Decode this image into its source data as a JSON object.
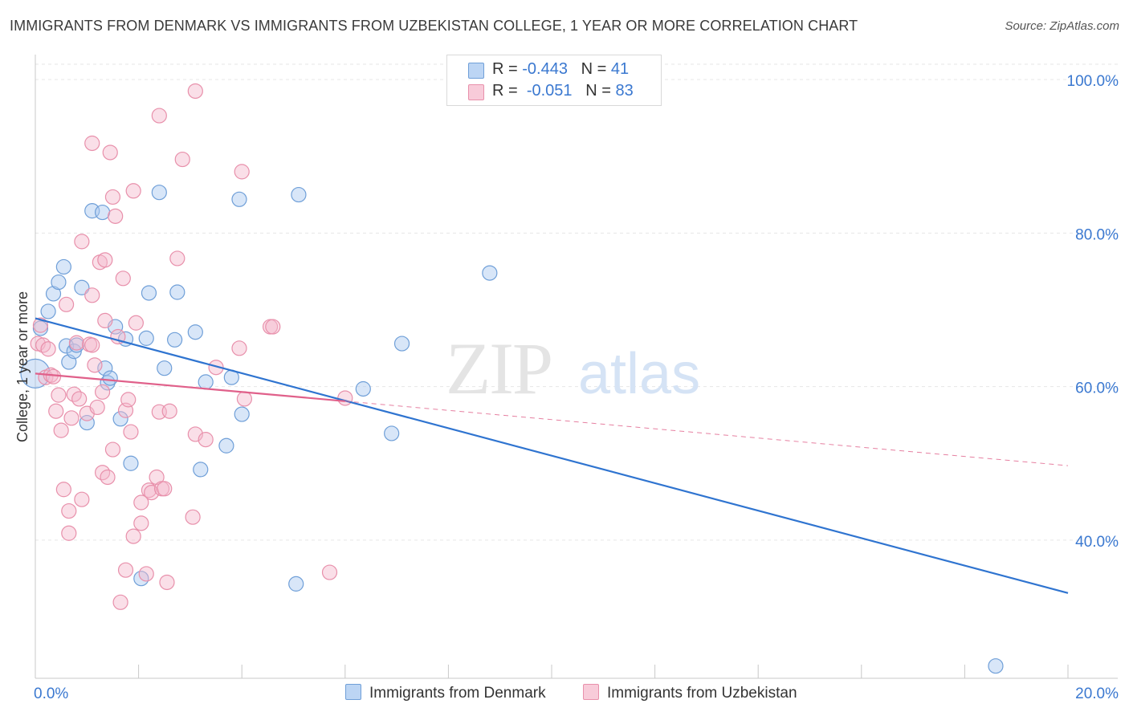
{
  "title": "IMMIGRANTS FROM DENMARK VS IMMIGRANTS FROM UZBEKISTAN COLLEGE, 1 YEAR OR MORE CORRELATION CHART",
  "source": "Source: ZipAtlas.com",
  "watermark": {
    "zip": "ZIP",
    "atlas": "atlas"
  },
  "legend": {
    "r_label": "R =",
    "n_label": "N =",
    "series": [
      {
        "r": "-0.443",
        "n": "41"
      },
      {
        "r": "-0.051",
        "n": "83"
      }
    ]
  },
  "colors": {
    "denmark_fill": "#a9c8f0",
    "denmark_stroke": "#6f9fd8",
    "denmark_line": "#2f74d0",
    "uzbekistan_fill": "#f5b9cc",
    "uzbekistan_stroke": "#e890ab",
    "uzbekistan_line": "#e0608a",
    "axis_label": "#3a78d0",
    "grid": "#e6e6e6"
  },
  "chart_data": {
    "type": "scatter",
    "title": "IMMIGRANTS FROM DENMARK VS IMMIGRANTS FROM UZBEKISTAN COLLEGE, 1 YEAR OR MORE CORRELATION CHART",
    "xlabel": "",
    "ylabel": "College, 1 year or more",
    "xlim": [
      0,
      20
    ],
    "ylim": [
      22,
      102
    ],
    "x_tick_labels": [
      "0.0%",
      "20.0%"
    ],
    "y_ticks": [
      40,
      60,
      80,
      100
    ],
    "y_tick_labels": [
      "40.0%",
      "60.0%",
      "80.0%",
      "100.0%"
    ],
    "grid": true,
    "series": [
      {
        "name": "Immigrants from Denmark",
        "trend": {
          "x": [
            0.0,
            20.0
          ],
          "y": [
            68.9,
            33.1
          ],
          "dashed_from": null
        },
        "points": [
          [
            0.0,
            61.7
          ],
          [
            0.1,
            67.6
          ],
          [
            0.25,
            69.8
          ],
          [
            0.35,
            72.1
          ],
          [
            0.45,
            73.6
          ],
          [
            0.55,
            75.6
          ],
          [
            0.6,
            65.3
          ],
          [
            0.65,
            63.2
          ],
          [
            0.75,
            64.6
          ],
          [
            0.8,
            65.4
          ],
          [
            0.9,
            72.9
          ],
          [
            1.0,
            55.3
          ],
          [
            1.1,
            82.9
          ],
          [
            1.3,
            82.7
          ],
          [
            1.35,
            62.4
          ],
          [
            1.4,
            60.5
          ],
          [
            1.45,
            61.1
          ],
          [
            1.55,
            67.8
          ],
          [
            1.65,
            55.8
          ],
          [
            1.75,
            66.2
          ],
          [
            1.85,
            50.0
          ],
          [
            2.05,
            35.0
          ],
          [
            2.15,
            66.3
          ],
          [
            2.2,
            72.2
          ],
          [
            2.4,
            85.3
          ],
          [
            2.5,
            62.4
          ],
          [
            2.7,
            66.1
          ],
          [
            2.75,
            72.3
          ],
          [
            3.1,
            67.1
          ],
          [
            3.2,
            49.2
          ],
          [
            3.3,
            60.6
          ],
          [
            3.7,
            52.3
          ],
          [
            3.8,
            61.2
          ],
          [
            3.95,
            84.4
          ],
          [
            4.0,
            56.4
          ],
          [
            5.05,
            34.3
          ],
          [
            5.1,
            85.0
          ],
          [
            6.35,
            59.7
          ],
          [
            6.9,
            53.9
          ],
          [
            7.1,
            65.6
          ],
          [
            8.8,
            74.8
          ],
          [
            18.6,
            23.6
          ]
        ]
      },
      {
        "name": "Immigrants from Uzbekistan",
        "trend": {
          "x": [
            0.0,
            20.0
          ],
          "y": [
            61.7,
            49.7
          ],
          "dashed_from": 6.0
        },
        "points": [
          [
            0.05,
            65.6
          ],
          [
            0.1,
            68.0
          ],
          [
            0.15,
            65.4
          ],
          [
            0.2,
            61.2
          ],
          [
            0.25,
            64.9
          ],
          [
            0.3,
            61.5
          ],
          [
            0.35,
            61.3
          ],
          [
            0.4,
            56.8
          ],
          [
            0.45,
            58.9
          ],
          [
            0.5,
            54.3
          ],
          [
            0.55,
            46.6
          ],
          [
            0.6,
            70.7
          ],
          [
            0.65,
            43.8
          ],
          [
            0.65,
            40.9
          ],
          [
            0.7,
            55.9
          ],
          [
            0.75,
            59.0
          ],
          [
            0.8,
            65.7
          ],
          [
            0.85,
            58.4
          ],
          [
            0.9,
            45.3
          ],
          [
            0.9,
            78.9
          ],
          [
            1.0,
            56.5
          ],
          [
            1.05,
            65.5
          ],
          [
            1.1,
            91.7
          ],
          [
            1.1,
            71.9
          ],
          [
            1.1,
            65.4
          ],
          [
            1.15,
            62.8
          ],
          [
            1.2,
            57.3
          ],
          [
            1.25,
            76.2
          ],
          [
            1.3,
            59.3
          ],
          [
            1.3,
            48.8
          ],
          [
            1.35,
            76.5
          ],
          [
            1.35,
            68.6
          ],
          [
            1.4,
            48.2
          ],
          [
            1.45,
            90.5
          ],
          [
            1.5,
            84.7
          ],
          [
            1.5,
            51.8
          ],
          [
            1.55,
            82.2
          ],
          [
            1.6,
            66.5
          ],
          [
            1.65,
            31.9
          ],
          [
            1.7,
            74.1
          ],
          [
            1.75,
            36.1
          ],
          [
            1.75,
            56.9
          ],
          [
            1.8,
            58.3
          ],
          [
            1.85,
            54.1
          ],
          [
            1.9,
            85.5
          ],
          [
            1.9,
            40.5
          ],
          [
            1.95,
            68.3
          ],
          [
            2.05,
            44.9
          ],
          [
            2.05,
            42.2
          ],
          [
            2.15,
            35.6
          ],
          [
            2.2,
            46.5
          ],
          [
            2.25,
            46.2
          ],
          [
            2.35,
            48.2
          ],
          [
            2.4,
            95.3
          ],
          [
            2.4,
            56.7
          ],
          [
            2.45,
            46.7
          ],
          [
            2.5,
            46.7
          ],
          [
            2.55,
            34.5
          ],
          [
            2.6,
            56.8
          ],
          [
            2.75,
            76.7
          ],
          [
            2.85,
            89.6
          ],
          [
            3.05,
            43.0
          ],
          [
            3.1,
            98.5
          ],
          [
            3.1,
            53.8
          ],
          [
            3.3,
            53.1
          ],
          [
            3.5,
            62.5
          ],
          [
            3.95,
            65.0
          ],
          [
            4.0,
            88.0
          ],
          [
            4.05,
            58.4
          ],
          [
            4.55,
            67.8
          ],
          [
            4.6,
            67.8
          ],
          [
            5.7,
            35.8
          ],
          [
            6.0,
            58.5
          ]
        ]
      }
    ]
  }
}
